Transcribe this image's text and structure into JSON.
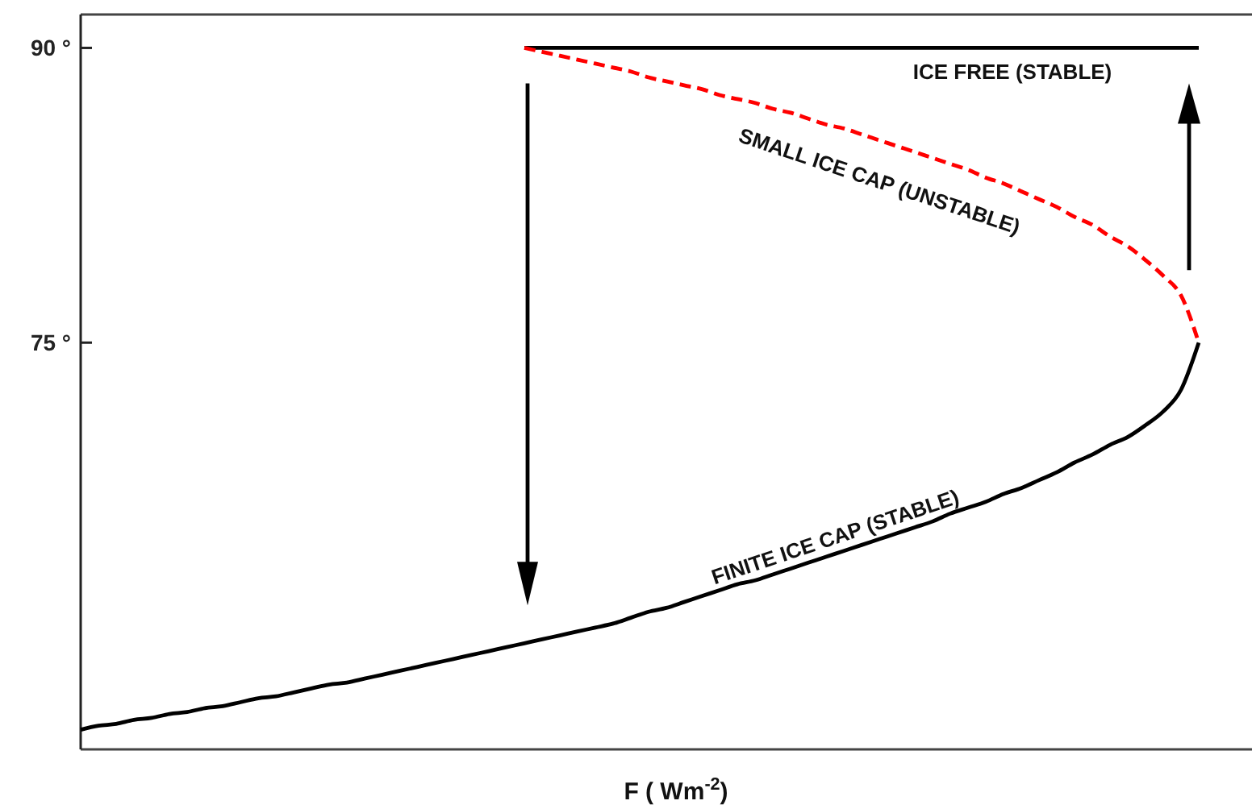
{
  "chart_data": {
    "type": "line",
    "xlabel": "F ( Wm$^{-2}$)",
    "ylim": [
      54.3,
      91.7
    ],
    "yticks": [
      {
        "value": 75,
        "label": "75 °"
      },
      {
        "value": 90,
        "label": "90 °"
      }
    ],
    "tick_labels": "y",
    "categories": [
      null,
      null,
      null,
      null,
      null,
      null,
      null,
      null,
      null,
      null,
      null,
      null,
      null,
      null,
      null,
      null,
      null,
      null,
      null,
      null,
      null,
      null,
      null,
      null,
      null,
      null,
      null,
      null,
      null,
      null,
      null,
      null,
      null,
      null,
      null,
      null,
      null,
      null,
      null,
      null,
      null,
      null,
      null,
      null,
      null,
      null,
      null,
      null,
      null,
      null,
      null,
      null,
      null,
      null,
      null,
      null,
      null,
      null,
      null,
      null,
      null,
      null,
      null,
      null,
      null,
      null,
      null
    ],
    "series": [
      {
        "name": "ICE FREE (STABLE)",
        "color": "#000000",
        "values": [
          null,
          null,
          null,
          null,
          null,
          null,
          null,
          null,
          null,
          null,
          null,
          null,
          null,
          null,
          null,
          null,
          null,
          null,
          null,
          null,
          null,
          null,
          null,
          null,
          null,
          90,
          90,
          90,
          90,
          90,
          90,
          90,
          90,
          90,
          90,
          90,
          90,
          90,
          90,
          90,
          90,
          90,
          90,
          90,
          90,
          90,
          90,
          90,
          90,
          90,
          90,
          90,
          90,
          90,
          90,
          90,
          90,
          90,
          90,
          90,
          90,
          90,
          90,
          90,
          null,
          null,
          null
        ]
      },
      {
        "name": "SMALL ICE CAP (UNSTABLE)",
        "color": "#ff0000",
        "line_style": "dashed",
        "values": [
          null,
          null,
          null,
          null,
          null,
          null,
          null,
          null,
          null,
          null,
          null,
          null,
          null,
          null,
          null,
          null,
          null,
          null,
          null,
          null,
          null,
          null,
          null,
          null,
          null,
          90.0,
          89.8,
          89.6,
          89.4,
          89.2,
          89.0,
          88.8,
          88.5,
          88.3,
          88.1,
          87.9,
          87.6,
          87.4,
          87.2,
          86.9,
          86.7,
          86.4,
          86.1,
          85.9,
          85.6,
          85.3,
          85.0,
          84.7,
          84.4,
          84.1,
          83.8,
          83.4,
          83.1,
          82.7,
          82.3,
          81.9,
          81.4,
          81.0,
          80.4,
          79.9,
          79.2,
          78.4,
          77.4,
          75.0,
          null,
          null,
          null
        ]
      },
      {
        "name": "FINITE ICE CAP (STABLE)",
        "color": "#000000",
        "values": [
          55.3,
          55.5,
          55.6,
          55.8,
          55.9,
          56.1,
          56.2,
          56.4,
          56.5,
          56.7,
          56.9,
          57.0,
          57.2,
          57.4,
          57.6,
          57.7,
          57.9,
          58.1,
          58.3,
          58.5,
          58.7,
          58.9,
          59.1,
          59.3,
          59.5,
          59.7,
          59.9,
          60.1,
          60.3,
          60.5,
          60.7,
          61.0,
          61.3,
          61.5,
          61.8,
          62.1,
          62.4,
          62.7,
          62.9,
          63.2,
          63.5,
          63.8,
          64.1,
          64.4,
          64.7,
          65.0,
          65.3,
          65.6,
          65.9,
          66.3,
          66.6,
          66.9,
          67.3,
          67.6,
          68.0,
          68.4,
          68.9,
          69.3,
          69.8,
          70.2,
          70.8,
          71.5,
          72.6,
          75.0,
          null,
          null,
          null
        ]
      }
    ]
  }
}
